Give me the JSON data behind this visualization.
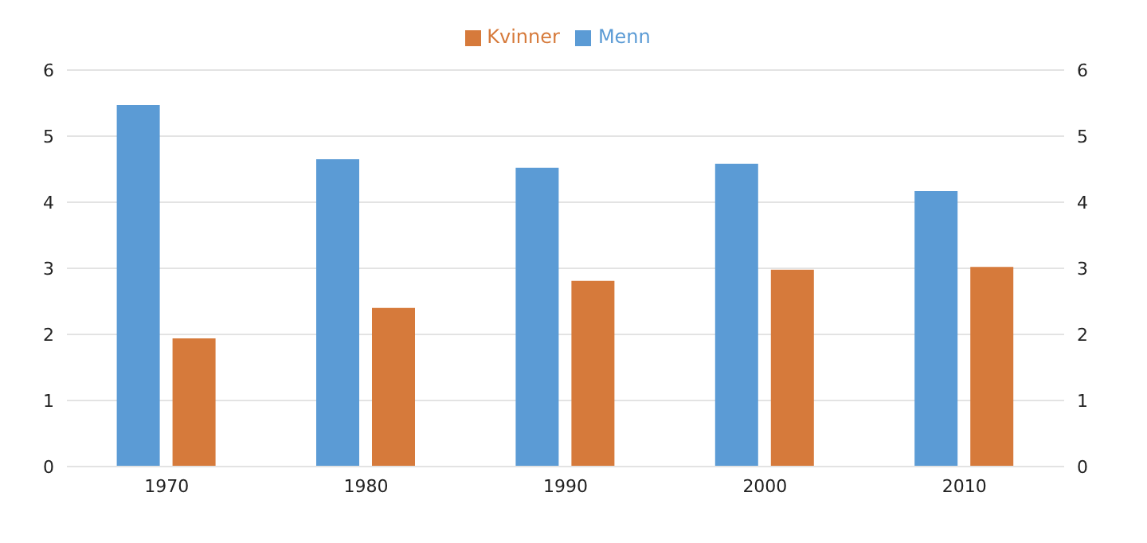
{
  "chart_data": {
    "type": "bar",
    "categories": [
      "1970",
      "1980",
      "1990",
      "2000",
      "2010"
    ],
    "series": [
      {
        "name": "Menn",
        "color": "#5b9bd5",
        "values": [
          5.47,
          4.65,
          4.52,
          4.58,
          4.17
        ]
      },
      {
        "name": "Kvinner",
        "color": "#d67a3b",
        "values": [
          1.94,
          2.4,
          2.81,
          2.98,
          3.02
        ]
      }
    ],
    "ylim": [
      0,
      6
    ],
    "yticks": [
      0,
      1,
      2,
      3,
      4,
      5,
      6
    ],
    "y2lim": [
      0,
      6
    ],
    "y2ticks": [
      0,
      1,
      2,
      3,
      4,
      5,
      6
    ],
    "grid": "y",
    "legend": "top"
  }
}
